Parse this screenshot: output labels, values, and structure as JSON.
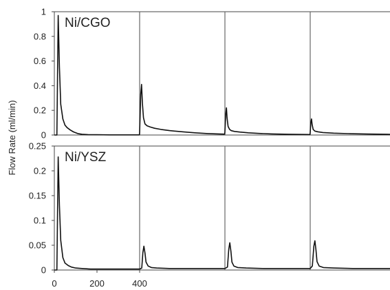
{
  "chart_data": [
    {
      "type": "line",
      "panel_label": "Ni/CGO",
      "ylabel": "Flow Rate (ml/min)",
      "xlabel": "",
      "xlim": [
        0,
        1600
      ],
      "ylim": [
        0,
        1
      ],
      "yticks": [
        "1",
        "0.8",
        "0.6",
        "0.4",
        "0.2",
        "0"
      ],
      "xticks": [],
      "divider_lines_x": [
        400,
        800,
        1200
      ],
      "series": [
        {
          "x": [
            0,
            12,
            18,
            24,
            30,
            40,
            50,
            60,
            75,
            90,
            110,
            130,
            160,
            200,
            260,
            330,
            399,
            400,
            405,
            409,
            413,
            418,
            425,
            435,
            450,
            470,
            500,
            540,
            600,
            660,
            720,
            780,
            799,
            800,
            804,
            807,
            810,
            815,
            822,
            830,
            845,
            870,
            910,
            960,
            1020,
            1100,
            1199,
            1200,
            1203,
            1206,
            1209,
            1214,
            1222,
            1235,
            1260,
            1310,
            1380,
            1470,
            1560,
            1600
          ],
          "y": [
            0,
            0,
            0.97,
            0.55,
            0.25,
            0.13,
            0.08,
            0.06,
            0.04,
            0.025,
            0.012,
            0.006,
            0.003,
            0.002,
            0.001,
            0.001,
            0.001,
            0.02,
            0.33,
            0.41,
            0.26,
            0.14,
            0.09,
            0.075,
            0.065,
            0.055,
            0.045,
            0.036,
            0.026,
            0.018,
            0.012,
            0.008,
            0.007,
            0.03,
            0.17,
            0.22,
            0.14,
            0.07,
            0.045,
            0.035,
            0.029,
            0.024,
            0.018,
            0.013,
            0.009,
            0.006,
            0.004,
            0.02,
            0.1,
            0.13,
            0.085,
            0.045,
            0.032,
            0.026,
            0.02,
            0.015,
            0.011,
            0.008,
            0.006,
            0.005
          ]
        }
      ]
    },
    {
      "type": "line",
      "panel_label": "Ni/YSZ",
      "ylabel": "Flow Rate (ml/min)",
      "xlabel": "",
      "xlim": [
        0,
        1600
      ],
      "ylim": [
        0,
        0.25
      ],
      "yticks": [
        "0.25",
        "0.2",
        "0.15",
        "0.1",
        "0.05",
        "0"
      ],
      "xticks": [
        "0",
        "200",
        "400"
      ],
      "divider_lines_x": [
        400,
        800,
        1200
      ],
      "series": [
        {
          "x": [
            0,
            12,
            18,
            24,
            30,
            40,
            50,
            65,
            80,
            100,
            130,
            170,
            230,
            300,
            360,
            399,
            400,
            410,
            415,
            420,
            425,
            430,
            440,
            455,
            480,
            540,
            620,
            700,
            799,
            800,
            812,
            818,
            823,
            828,
            833,
            842,
            860,
            900,
            980,
            1080,
            1199,
            1200,
            1210,
            1217,
            1222,
            1227,
            1232,
            1242,
            1262,
            1310,
            1400,
            1500,
            1600
          ],
          "y": [
            0,
            0,
            0.228,
            0.13,
            0.06,
            0.025,
            0.014,
            0.009,
            0.006,
            0.004,
            0.003,
            0.002,
            0.002,
            0.002,
            0.002,
            0.002,
            0.002,
            0.004,
            0.035,
            0.048,
            0.034,
            0.016,
            0.008,
            0.005,
            0.004,
            0.003,
            0.003,
            0.003,
            0.003,
            0.003,
            0.006,
            0.042,
            0.055,
            0.038,
            0.016,
            0.008,
            0.005,
            0.004,
            0.003,
            0.003,
            0.003,
            0.003,
            0.008,
            0.048,
            0.059,
            0.04,
            0.017,
            0.008,
            0.005,
            0.004,
            0.003,
            0.003,
            0.003
          ]
        }
      ]
    }
  ]
}
